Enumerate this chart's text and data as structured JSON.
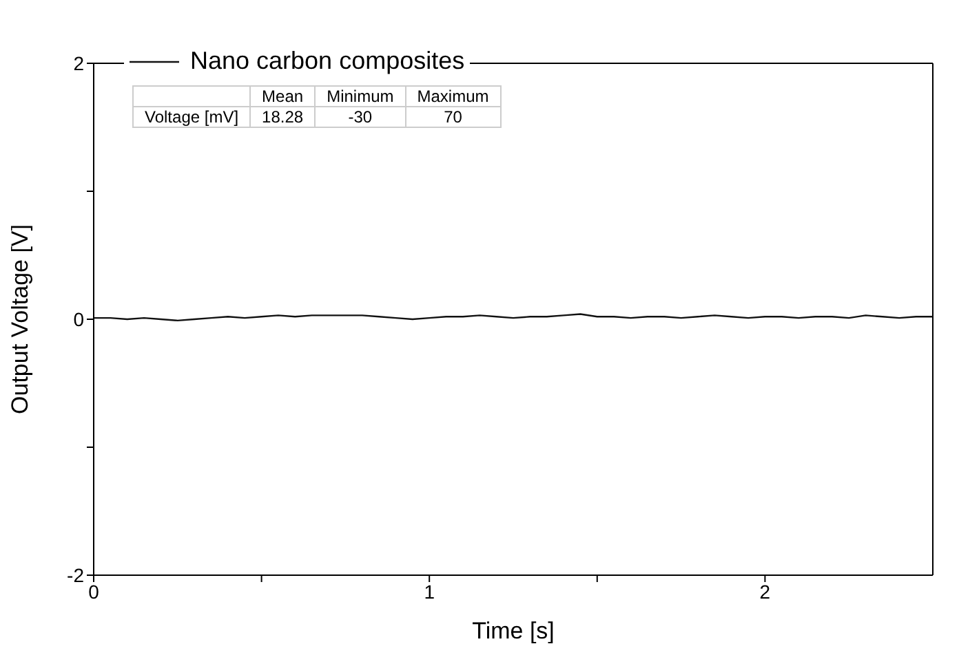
{
  "chart_data": {
    "type": "line",
    "xlabel": "Time [s]",
    "ylabel": "Output Voltage [V]",
    "x": [
      0,
      0.05,
      0.1,
      0.15,
      0.2,
      0.25,
      0.3,
      0.35,
      0.4,
      0.45,
      0.5,
      0.55,
      0.6,
      0.65,
      0.7,
      0.75,
      0.8,
      0.85,
      0.9,
      0.95,
      1,
      1.05,
      1.1,
      1.15,
      1.2,
      1.25,
      1.3,
      1.35,
      1.4,
      1.45,
      1.5,
      1.55,
      1.6,
      1.65,
      1.7,
      1.75,
      1.8,
      1.85,
      1.9,
      1.95,
      2,
      2.05,
      2.1,
      2.15,
      2.2,
      2.25,
      2.3,
      2.35,
      2.4,
      2.45,
      2.5
    ],
    "series": [
      {
        "name": "Nano carbon composites",
        "color": "#111111",
        "values": [
          0.01,
          0.01,
          0,
          0.01,
          0,
          -0.01,
          0,
          0.01,
          0.02,
          0.01,
          0.02,
          0.03,
          0.02,
          0.03,
          0.03,
          0.03,
          0.03,
          0.02,
          0.01,
          0,
          0.01,
          0.02,
          0.02,
          0.03,
          0.02,
          0.01,
          0.02,
          0.02,
          0.03,
          0.04,
          0.02,
          0.02,
          0.01,
          0.02,
          0.02,
          0.01,
          0.02,
          0.03,
          0.02,
          0.01,
          0.02,
          0.02,
          0.01,
          0.02,
          0.02,
          0.01,
          0.03,
          0.02,
          0.01,
          0.02,
          0.02
        ]
      }
    ],
    "xlim": [
      0,
      2.5
    ],
    "xticks": [
      0,
      {
        "value": 0.5,
        "label": null
      },
      1,
      {
        "value": 1.5,
        "label": null
      },
      2
    ],
    "ylim": [
      -2,
      2
    ],
    "yticks": [
      -2,
      {
        "value": -1,
        "label": null
      },
      0,
      {
        "value": 1,
        "label": null
      },
      2
    ],
    "legend": "top left",
    "marker": "none",
    "line_style": "solid",
    "annotations": [
      "Mean",
      "Minimum",
      "Maximum",
      "Voltage [mV]",
      "18.28",
      "-30",
      "70"
    ]
  }
}
